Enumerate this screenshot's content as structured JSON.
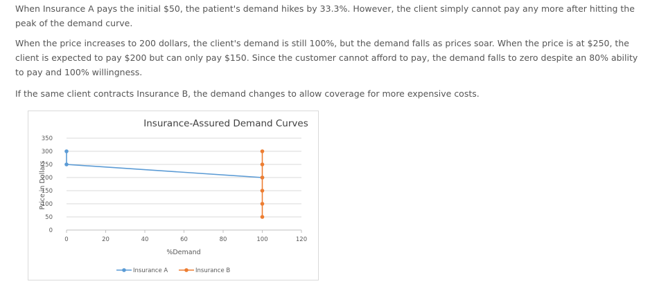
{
  "text": {
    "p1": "When Insurance A pays the initial $50, the patient's demand hikes by 33.3%. However, the client simply cannot pay any more after hitting the peak of the demand curve.",
    "p2": "When the price increases to 200 dollars, the client's demand is still 100%, but the demand falls as prices soar. When the price is at $250, the client is expected to pay $200 but can only pay $150. Since the customer cannot afford to pay, the demand falls to zero despite an 80% ability to pay and 100% willingness.",
    "p3": "If the same client contracts Insurance B, the demand changes to allow coverage for more expensive costs."
  },
  "chart_data": {
    "type": "scatter",
    "title": "Insurance-Assured Demand Curves",
    "xlabel": "%Demand",
    "ylabel": "Price in Dollars",
    "xlim": [
      0,
      120
    ],
    "ylim": [
      0,
      350
    ],
    "xticks": [
      "0",
      "20",
      "40",
      "60",
      "80",
      "100",
      "120"
    ],
    "yticks": [
      "0",
      "50",
      "100",
      "150",
      "200",
      "250",
      "300",
      "350"
    ],
    "grid": "horizontal",
    "legend": "bottom",
    "series": [
      {
        "name": "Insurance A",
        "color": "#5b9bd5",
        "points": [
          [
            0,
            300
          ],
          [
            0,
            250
          ],
          [
            100,
            200
          ]
        ]
      },
      {
        "name": "Insurance B",
        "color": "#ed7d31",
        "points": [
          [
            100,
            300
          ],
          [
            100,
            250
          ],
          [
            100,
            200
          ],
          [
            100,
            150
          ],
          [
            100,
            100
          ],
          [
            100,
            50
          ]
        ]
      }
    ]
  }
}
